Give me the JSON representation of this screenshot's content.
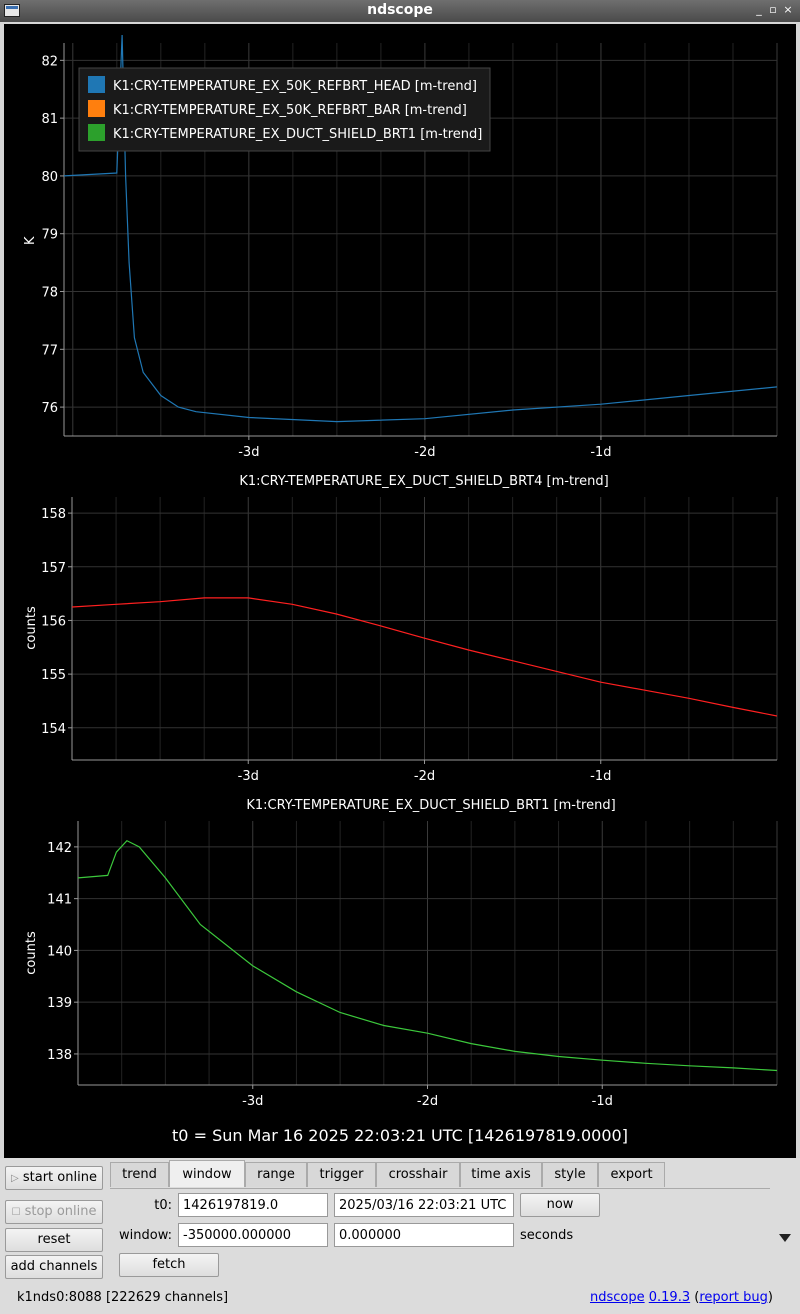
{
  "window": {
    "title": "ndscope",
    "buttons": [
      "_",
      "▫",
      "×"
    ]
  },
  "plots": [
    {
      "title": "",
      "ylabel": "K",
      "y_ticks": [
        82,
        81,
        80,
        79,
        78,
        77,
        76
      ],
      "x_ticks": [
        "-3d",
        "-2d",
        "-1d"
      ],
      "legend": [
        {
          "label": "K1:CRY-TEMPERATURE_EX_50K_REFBRT_HEAD [m-trend]",
          "color": "#1f77b4"
        },
        {
          "label": "K1:CRY-TEMPERATURE_EX_50K_REFBRT_BAR [m-trend]",
          "color": "#ff7f0e"
        },
        {
          "label": "K1:CRY-TEMPERATURE_EX_DUCT_SHIELD_BRT1 [m-trend]",
          "color": "#2ca02c"
        }
      ]
    },
    {
      "title": "K1:CRY-TEMPERATURE_EX_DUCT_SHIELD_BRT4 [m-trend]",
      "ylabel": "counts",
      "y_ticks": [
        158,
        157,
        156,
        155,
        154
      ],
      "x_ticks": [
        "-3d",
        "-2d",
        "-1d"
      ]
    },
    {
      "title": "K1:CRY-TEMPERATURE_EX_DUCT_SHIELD_BRT1 [m-trend]",
      "ylabel": "counts",
      "y_ticks": [
        142,
        141,
        140,
        139,
        138
      ],
      "x_ticks": [
        "-3d",
        "-2d",
        "-1d"
      ]
    }
  ],
  "chart_data": [
    {
      "type": "line",
      "xlabel": "",
      "ylabel": "K",
      "xlim": [
        -4.05,
        0
      ],
      "ylim": [
        75.5,
        82.3
      ],
      "x_unit": "d",
      "series": [
        {
          "name": "K1:CRY-TEMPERATURE_EX_50K_REFBRT_HEAD [m-trend]",
          "color": "#1f77b4",
          "x": [
            -4.05,
            -3.75,
            -3.72,
            -3.7,
            -3.68,
            -3.65,
            -3.6,
            -3.5,
            -3.4,
            -3.3,
            -3.0,
            -2.5,
            -2.0,
            -1.5,
            -1.0,
            -0.5,
            0.0
          ],
          "y": [
            80.0,
            80.05,
            83.0,
            80.0,
            78.5,
            77.2,
            76.6,
            76.2,
            76.0,
            75.92,
            75.82,
            75.75,
            75.8,
            75.95,
            76.05,
            76.2,
            76.35
          ]
        }
      ]
    },
    {
      "type": "line",
      "xlabel": "",
      "ylabel": "counts",
      "xlim": [
        -4.0,
        0
      ],
      "ylim": [
        153.4,
        158.3
      ],
      "x_unit": "d",
      "series": [
        {
          "name": "K1:CRY-TEMPERATURE_EX_DUCT_SHIELD_BRT4 [m-trend]",
          "color": "#ff2020",
          "x": [
            -4.0,
            -3.75,
            -3.5,
            -3.25,
            -3.0,
            -2.75,
            -2.5,
            -2.25,
            -2.0,
            -1.75,
            -1.5,
            -1.25,
            -1.0,
            -0.75,
            -0.5,
            -0.25,
            0.0
          ],
          "y": [
            156.25,
            156.3,
            156.35,
            156.42,
            156.42,
            156.3,
            156.12,
            155.9,
            155.67,
            155.45,
            155.25,
            155.05,
            154.85,
            154.7,
            154.55,
            154.38,
            154.22
          ]
        }
      ]
    },
    {
      "type": "line",
      "xlabel": "",
      "ylabel": "counts",
      "xlim": [
        -4.0,
        0
      ],
      "ylim": [
        137.4,
        142.5
      ],
      "x_unit": "d",
      "series": [
        {
          "name": "K1:CRY-TEMPERATURE_EX_DUCT_SHIELD_BRT1 [m-trend]",
          "color": "#3cc83c",
          "x": [
            -4.0,
            -3.83,
            -3.78,
            -3.72,
            -3.65,
            -3.5,
            -3.3,
            -3.0,
            -2.75,
            -2.5,
            -2.25,
            -2.0,
            -1.75,
            -1.5,
            -1.25,
            -1.0,
            -0.75,
            -0.5,
            -0.25,
            0.0
          ],
          "y": [
            141.4,
            141.45,
            141.9,
            142.12,
            142.0,
            141.4,
            140.5,
            139.7,
            139.2,
            138.8,
            138.55,
            138.4,
            138.2,
            138.05,
            137.95,
            137.88,
            137.82,
            137.77,
            137.73,
            137.68
          ]
        }
      ]
    }
  ],
  "t0_label": "t0 = Sun Mar 16 2025 22:03:21 UTC [1426197819.0000]",
  "controls": {
    "side_buttons": [
      "start online",
      "stop online",
      "reset",
      "add channels"
    ],
    "tabs": [
      "trend",
      "window",
      "range",
      "trigger",
      "crosshair",
      "time axis",
      "style",
      "export"
    ],
    "active_tab": "window",
    "t0_label": "t0:",
    "t0_gps": "1426197819.0",
    "t0_utc": "2025/03/16 22:03:21 UTC",
    "now_label": "now",
    "window_label": "window:",
    "window_start": "-350000.000000",
    "window_end": "0.000000",
    "seconds_label": "seconds",
    "fetch_label": "fetch"
  },
  "status": {
    "server": "k1nds0:8088",
    "channels": "[222629 channels]",
    "app_name": "ndscope",
    "version": "0.19.3",
    "report_bug": "report bug"
  }
}
